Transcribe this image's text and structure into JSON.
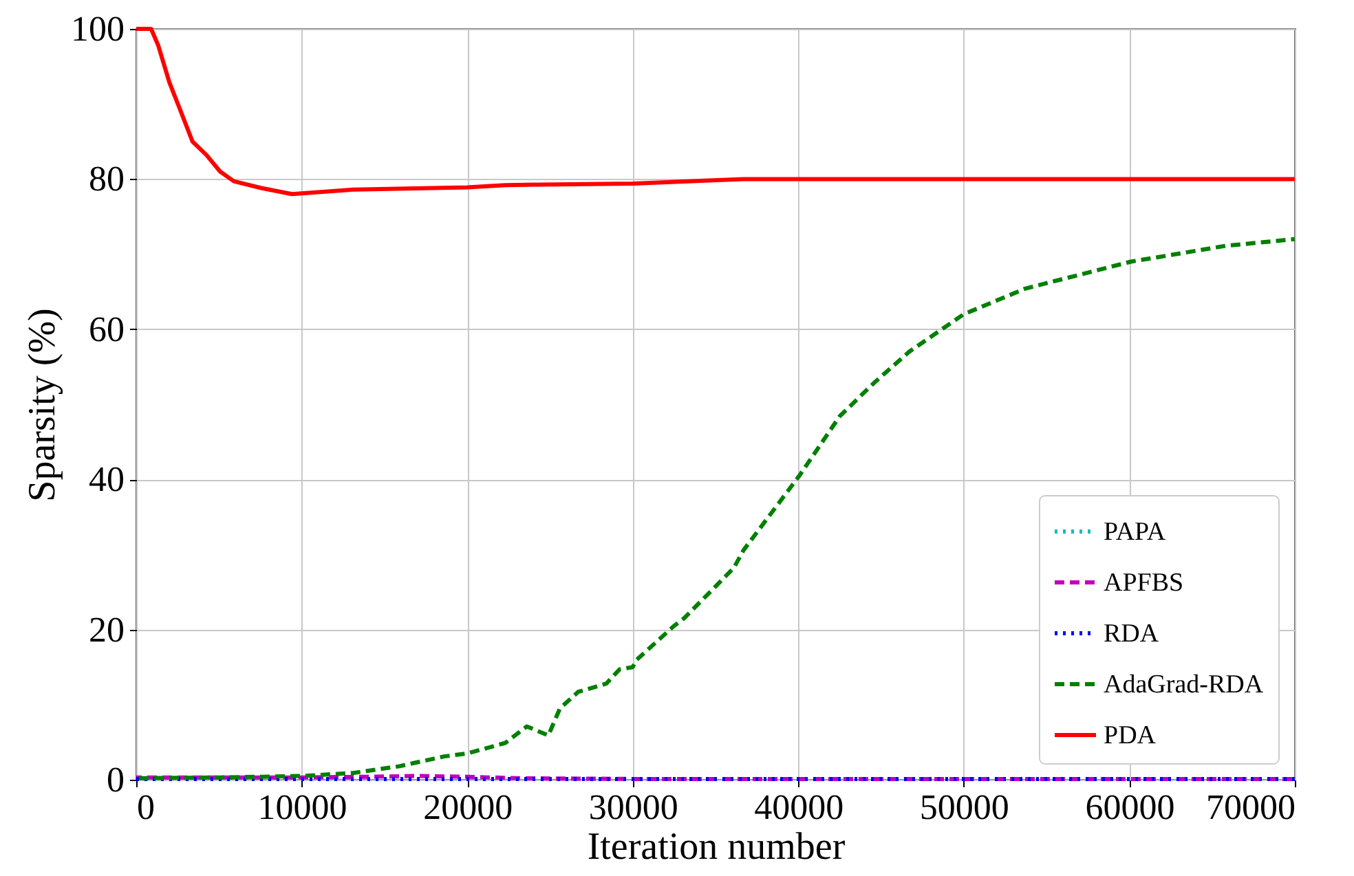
{
  "chart_data": {
    "type": "line",
    "xlabel": "Iteration number",
    "ylabel": "Sparsity (%)",
    "xlim": [
      0,
      70000
    ],
    "xticks": [
      0,
      10000,
      20000,
      30000,
      40000,
      50000,
      60000,
      70000
    ],
    "ylim": [
      0,
      100
    ],
    "yticks": [
      0,
      20,
      40,
      60,
      80,
      100
    ],
    "grid": true,
    "legend": "bottom right",
    "series": [
      {
        "name": "PAPA",
        "color": "#00bfbf",
        "line_style": "dotted"
      },
      {
        "name": "APFBS",
        "color": "#bf00bf",
        "line_style": "dashed",
        "x": [
          0,
          5000,
          10000,
          14000,
          17000,
          20000,
          23000,
          30000,
          40000,
          50000,
          60000,
          70000
        ],
        "values": [
          0.3,
          0.3,
          0.3,
          0.4,
          0.5,
          0.4,
          0.2,
          0.1,
          0.1,
          0.1,
          0.1,
          0.1
        ]
      },
      {
        "name": "RDA",
        "color": "#0000ff",
        "line_style": "dotted",
        "x": [
          0,
          10000,
          20000,
          30000,
          40000,
          50000,
          60000,
          70000
        ],
        "values": [
          0.1,
          0.1,
          0.1,
          0.1,
          0.1,
          0.1,
          0.1,
          0.1
        ]
      },
      {
        "name": "AdaGrad-RDA",
        "color": "#008000",
        "line_style": "dashed",
        "x": [
          0,
          5000,
          10000,
          13100,
          15900,
          18600,
          20000,
          22300,
          23600,
          24900,
          25600,
          26700,
          28400,
          29200,
          30000,
          30200,
          32500,
          33100,
          36100,
          36700,
          40100,
          42500,
          44600,
          46700,
          50000,
          53700,
          60100,
          65800,
          70000
        ],
        "values": [
          0.2,
          0.3,
          0.5,
          0.9,
          1.8,
          3.1,
          3.5,
          4.9,
          7.1,
          5.9,
          9.5,
          11.7,
          12.8,
          14.7,
          15.0,
          15.9,
          20.5,
          21.5,
          28.2,
          30.6,
          40.6,
          48.4,
          52.9,
          57,
          62,
          65.4,
          69,
          71.1,
          72
        ]
      },
      {
        "name": "PDA",
        "color": "#ff0000",
        "line_style": "solid",
        "x": [
          0,
          900,
          1330,
          2000,
          2570,
          3400,
          4240,
          5070,
          5900,
          7560,
          9400,
          13100,
          20000,
          22300,
          30000,
          36700,
          40000,
          50000,
          60000,
          70000
        ],
        "values": [
          100,
          100,
          97.8,
          92.9,
          89.7,
          85,
          83.2,
          81,
          79.7,
          78.8,
          78.0,
          78.6,
          78.9,
          79.2,
          79.4,
          80,
          80,
          80,
          80,
          80
        ]
      }
    ]
  }
}
